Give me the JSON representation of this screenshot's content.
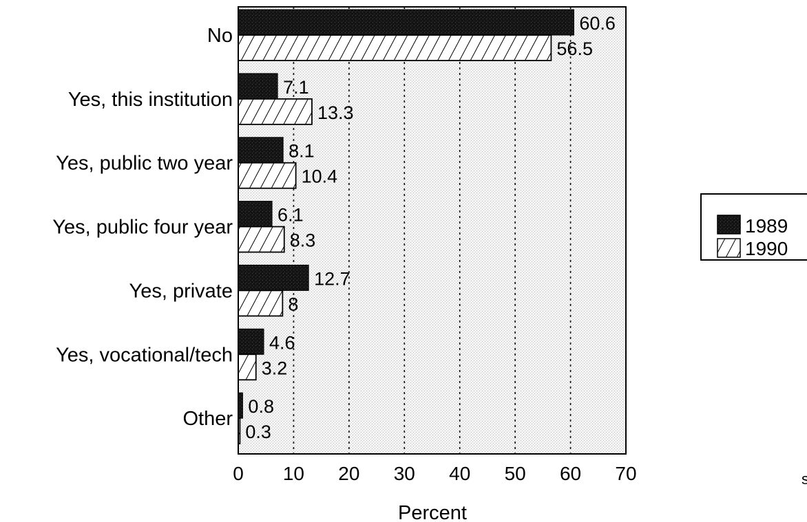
{
  "chart_data": {
    "type": "bar",
    "orientation": "horizontal",
    "categories": [
      "No",
      "Yes, this institution",
      "Yes, public two year",
      "Yes, public four year",
      "Yes, private",
      "Yes, vocational/tech",
      "Other"
    ],
    "series": [
      {
        "name": "1989",
        "values": [
          60.6,
          7.1,
          8.1,
          6.1,
          12.7,
          4.6,
          0.8
        ],
        "labels": [
          "60.6",
          "7.1",
          "8.1",
          "6.1",
          "12.7",
          "4.6",
          "0.8"
        ],
        "fill": "solid-dark",
        "color": "#1a1a1a"
      },
      {
        "name": "1990",
        "values": [
          56.5,
          13.3,
          10.4,
          8.3,
          8,
          3.2,
          0.3
        ],
        "labels": [
          "56.5",
          "13.3",
          "10.4",
          "8.3",
          "8",
          "3.2",
          "0.3"
        ],
        "fill": "diagonal-hatch",
        "color": "#ffffff"
      }
    ],
    "xlabel": "Percent",
    "ylabel": "",
    "title": "",
    "xlim": [
      0,
      70
    ],
    "xticks": [
      "0",
      "10",
      "20",
      "30",
      "40",
      "50",
      "60",
      "70"
    ],
    "grid": "vertical dotted lines",
    "plot_background": "light stipple",
    "legend_position": "right"
  },
  "edge_fragment": "s"
}
